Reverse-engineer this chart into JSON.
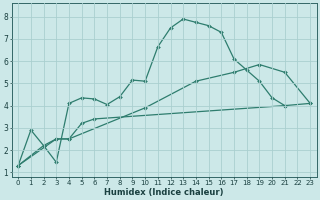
{
  "xlabel": "Humidex (Indice chaleur)",
  "bg_color": "#cce8e8",
  "line_color": "#2e7d6e",
  "grid_color": "#aacfcf",
  "xlim": [
    -0.5,
    23.5
  ],
  "ylim": [
    0.8,
    8.6
  ],
  "xticks": [
    0,
    1,
    2,
    3,
    4,
    5,
    6,
    7,
    8,
    9,
    10,
    11,
    12,
    13,
    14,
    15,
    16,
    17,
    18,
    19,
    20,
    21,
    22,
    23
  ],
  "yticks": [
    1,
    2,
    3,
    4,
    5,
    6,
    7,
    8
  ],
  "curve1_x": [
    0,
    1,
    2,
    3,
    4,
    5,
    6,
    7,
    8,
    9,
    10,
    11,
    12,
    13,
    14,
    15,
    16,
    17,
    18,
    19,
    20,
    21
  ],
  "curve1_y": [
    1.3,
    2.9,
    2.2,
    1.45,
    4.1,
    4.35,
    4.3,
    4.05,
    4.4,
    5.15,
    5.1,
    6.65,
    7.5,
    7.9,
    7.75,
    7.6,
    7.3,
    6.1,
    5.6,
    5.1,
    4.35,
    4.0
  ],
  "curve2_x": [
    0,
    2,
    3,
    4,
    5,
    6,
    21,
    23
  ],
  "curve2_y": [
    1.3,
    2.2,
    2.5,
    2.5,
    3.2,
    3.4,
    4.0,
    4.1
  ],
  "curve3_x": [
    0,
    3,
    4,
    10,
    14,
    17,
    19,
    21,
    23
  ],
  "curve3_y": [
    1.3,
    2.5,
    2.5,
    3.9,
    5.1,
    5.5,
    5.85,
    5.5,
    4.1
  ],
  "markersize": 2.0,
  "linewidth": 0.9,
  "xlabel_fontsize": 6.0,
  "tick_fontsize": 5.0
}
